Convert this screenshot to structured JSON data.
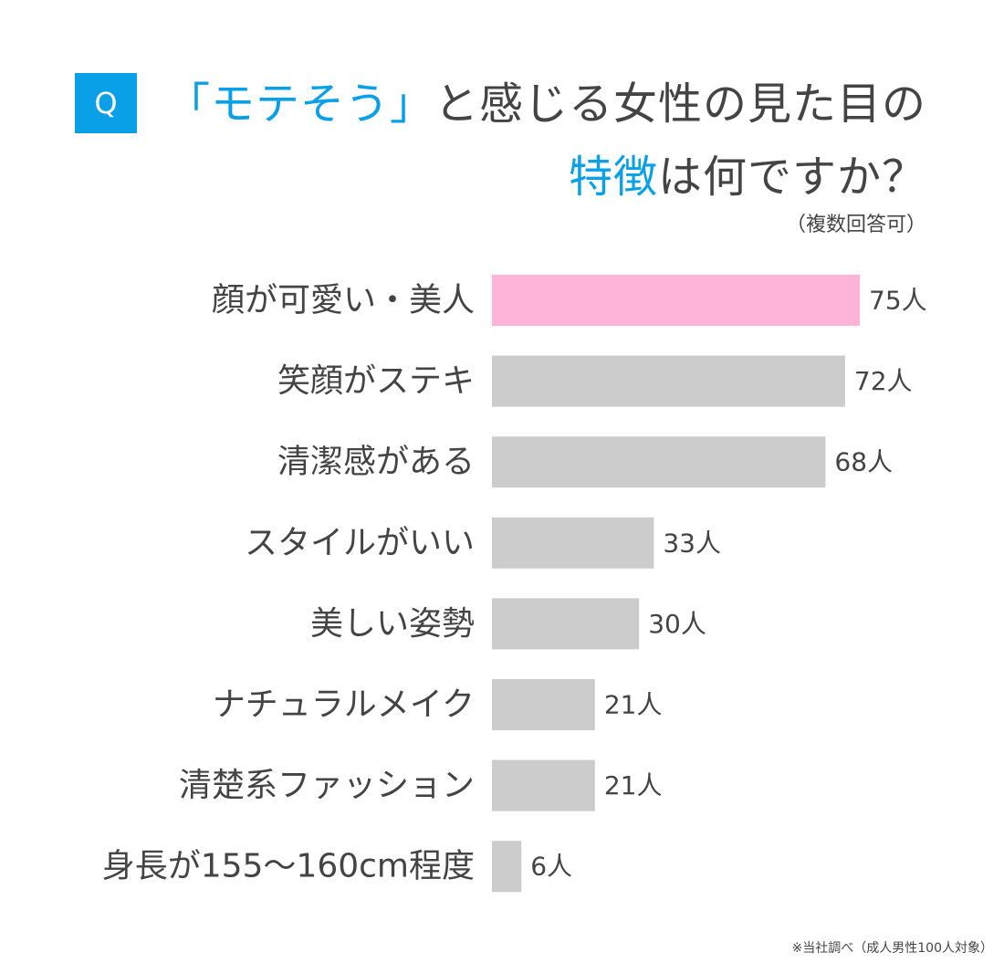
{
  "header": {
    "badge": "Q",
    "title_line1_accent": "「モテそう」",
    "title_line1_rest": "と感じる女性の見た目の",
    "title_line2_accent": "特徴",
    "title_line2_rest": "は何ですか？",
    "subtitle": "（複数回答可）"
  },
  "footnote": "※当社調べ（成人男性100人対象）",
  "colors": {
    "accent": "#0aa0e8",
    "highlight_bar": "#ffb3d9",
    "bar": "#cccccc",
    "text": "#444444"
  },
  "chart_data": {
    "type": "bar",
    "orientation": "horizontal",
    "categories": [
      "顔が可愛い・美人",
      "笑顔がステキ",
      "清潔感がある",
      "スタイルがいい",
      "美しい姿勢",
      "ナチュラルメイク",
      "清楚系ファッション",
      "身長が155〜160cm程度"
    ],
    "values": [
      75,
      72,
      68,
      33,
      30,
      21,
      21,
      6
    ],
    "value_labels": [
      "75人",
      "72人",
      "68人",
      "33人",
      "30人",
      "21人",
      "21人",
      "6人"
    ],
    "unit": "人",
    "highlight_index": 0,
    "grid": false,
    "legend": "none"
  }
}
